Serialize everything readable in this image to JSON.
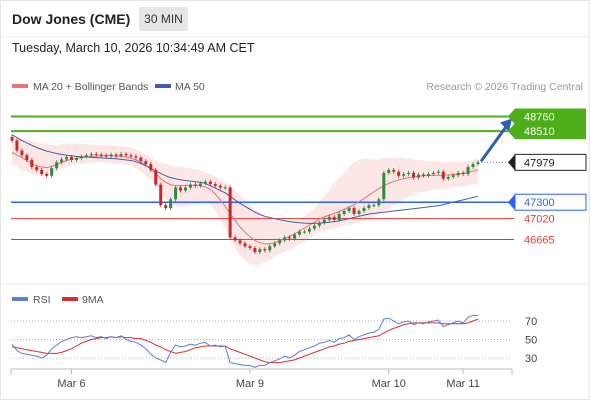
{
  "header": {
    "title": "Dow Jones (CME)",
    "interval": "30 MIN",
    "timestamp": "Tuesday, March 10, 2026 10:34:49 AM CET"
  },
  "legend": {
    "ma20": "MA 20 + Bollinger Bands",
    "ma50": "MA 50",
    "credit": "Research © 2026 Trading Central",
    "rsi": "RSI",
    "rsi_ma": "9MA"
  },
  "colors": {
    "up_candle": "#2f8a3f",
    "down_candle": "#c62828",
    "ma20": "#e57373",
    "ma50": "#3f5fa8",
    "bollinger_fill": "#fde2e2",
    "resistance": "#4caf1a",
    "pivot": "#2962ff",
    "support": "#e53935",
    "last_price": "#222222",
    "rsi_line": "#5b7fd6",
    "rsi_ma_line": "#d32f2f",
    "arrow": "#2f5fb0"
  },
  "chart_data": [
    {
      "type": "candlestick",
      "title": "Dow Jones (CME)",
      "ylim": [
        46350,
        48980
      ],
      "x_ticks": [
        "Mar 6",
        "Mar 9",
        "Mar 10",
        "Mar 11"
      ],
      "last_price": 47979,
      "levels": [
        {
          "value": 48760,
          "label": "48760",
          "kind": "resistance"
        },
        {
          "value": 48510,
          "label": "48510",
          "kind": "resistance"
        },
        {
          "value": 47979,
          "label": "47979",
          "kind": "last"
        },
        {
          "value": 47300,
          "label": "47300",
          "kind": "pivot"
        },
        {
          "value": 47020,
          "label": "47020",
          "kind": "support"
        },
        {
          "value": 46665,
          "label": "46665",
          "kind": "support"
        }
      ],
      "close": [
        48350,
        48180,
        48100,
        48020,
        47900,
        47850,
        47780,
        47750,
        47880,
        47980,
        48030,
        48070,
        48020,
        48050,
        48080,
        48100,
        48120,
        48110,
        48100,
        48080,
        48110,
        48090,
        48120,
        48100,
        48080,
        48060,
        48000,
        47950,
        47850,
        47600,
        47250,
        47200,
        47350,
        47550,
        47500,
        47550,
        47600,
        47580,
        47620,
        47650,
        47610,
        47580,
        47550,
        47550,
        46700,
        46650,
        46600,
        46550,
        46520,
        46450,
        46500,
        46480,
        46550,
        46600,
        46650,
        46700,
        46680,
        46750,
        46800,
        46800,
        46850,
        46900,
        46950,
        47000,
        47050,
        47000,
        47100,
        47150,
        47200,
        47100,
        47150,
        47200,
        47250,
        47250,
        47350,
        47800,
        47850,
        47820,
        47750,
        47780,
        47800,
        47720,
        47770,
        47750,
        47780,
        47800,
        47820,
        47700,
        47730,
        47760,
        47800,
        47780,
        47900,
        47950,
        47979
      ],
      "ma20": [
        48150,
        48100,
        48060,
        48010,
        47960,
        47920,
        47900,
        47890,
        47910,
        47940,
        47980,
        48010,
        48030,
        48050,
        48060,
        48070,
        48080,
        48085,
        48090,
        48090,
        48090,
        48085,
        48080,
        48070,
        48050,
        48020,
        47980,
        47930,
        47860,
        47780,
        47700,
        47640,
        47600,
        47580,
        47580,
        47590,
        47590,
        47590,
        47580,
        47560,
        47520,
        47440,
        47340,
        47230,
        47110,
        46990,
        46880,
        46790,
        46710,
        46650,
        46610,
        46590,
        46590,
        46610,
        46640,
        46680,
        46720,
        46760,
        46810,
        46860,
        46910,
        46960,
        47010,
        47050,
        47080,
        47110,
        47140,
        47180,
        47220,
        47260,
        47310,
        47360,
        47420,
        47480,
        47530,
        47580,
        47620,
        47650,
        47680,
        47700,
        47720,
        47730,
        47740,
        47750,
        47755,
        47760,
        47760,
        47760,
        47765,
        47770,
        47775,
        47790,
        47810,
        47830,
        47850
      ],
      "bb_upper": [
        48450,
        48400,
        48380,
        48360,
        48340,
        48320,
        48300,
        48290,
        48280,
        48280,
        48290,
        48300,
        48300,
        48300,
        48295,
        48290,
        48285,
        48280,
        48275,
        48270,
        48265,
        48260,
        48250,
        48240,
        48230,
        48200,
        48160,
        48110,
        48060,
        48010,
        47980,
        47950,
        47930,
        47910,
        47900,
        47890,
        47880,
        47860,
        47840,
        47810,
        47780,
        47740,
        47690,
        47630,
        47580,
        47500,
        47420,
        47340,
        47260,
        47180,
        47120,
        47060,
        47020,
        47000,
        46990,
        46980,
        46980,
        46990,
        47020,
        47060,
        47120,
        47200,
        47300,
        47400,
        47500,
        47620,
        47720,
        47800,
        47900,
        47980,
        48020,
        48040,
        48040,
        48030,
        48030,
        48050,
        48060,
        48060,
        48060,
        48050,
        48040,
        48030,
        48020,
        48010,
        48000,
        48000,
        47990,
        47980,
        47980,
        47980,
        47980,
        47990,
        48000,
        48020,
        48050
      ],
      "bb_lower": [
        47950,
        47900,
        47850,
        47820,
        47780,
        47760,
        47750,
        47760,
        47780,
        47820,
        47870,
        47900,
        47930,
        47950,
        47960,
        47970,
        47975,
        47980,
        47980,
        47975,
        47970,
        47960,
        47950,
        47940,
        47920,
        47880,
        47820,
        47750,
        47680,
        47600,
        47460,
        47350,
        47280,
        47240,
        47220,
        47230,
        47240,
        47260,
        47280,
        47290,
        47260,
        47150,
        47000,
        46850,
        46680,
        46520,
        46400,
        46300,
        46250,
        46230,
        46240,
        46280,
        46320,
        46380,
        46420,
        46460,
        46500,
        46540,
        46580,
        46630,
        46690,
        46750,
        46790,
        46820,
        46840,
        46860,
        46880,
        46900,
        46920,
        46940,
        46960,
        46990,
        47020,
        47060,
        47100,
        47150,
        47200,
        47250,
        47300,
        47350,
        47400,
        47430,
        47460,
        47480,
        47500,
        47510,
        47520,
        47530,
        47540,
        47550,
        47560,
        47570,
        47580,
        47600,
        47620
      ],
      "ma50": [
        48450,
        48400,
        48350,
        48310,
        48270,
        48230,
        48200,
        48170,
        48150,
        48130,
        48115,
        48100,
        48090,
        48080,
        48075,
        48070,
        48065,
        48060,
        48055,
        48050,
        48045,
        48040,
        48030,
        48020,
        48010,
        47990,
        47960,
        47920,
        47880,
        47830,
        47790,
        47750,
        47720,
        47700,
        47680,
        47670,
        47660,
        47650,
        47640,
        47620,
        47580,
        47540,
        47500,
        47460,
        47400,
        47340,
        47280,
        47230,
        47180,
        47130,
        47090,
        47060,
        47040,
        47020,
        47000,
        46985,
        46970,
        46960,
        46950,
        46945,
        46940,
        46940,
        46945,
        46950,
        46960,
        46970,
        46985,
        47000,
        47020,
        47040,
        47060,
        47080,
        47100,
        47110,
        47120,
        47130,
        47140,
        47150,
        47160,
        47170,
        47180,
        47190,
        47200,
        47210,
        47220,
        47230,
        47240,
        47260,
        47280,
        47300,
        47320,
        47340,
        47360,
        47380,
        47400
      ]
    },
    {
      "type": "line",
      "title": "RSI",
      "series_names": [
        "RSI",
        "9MA"
      ],
      "y_ticks": [
        30,
        50,
        70
      ],
      "ylim": [
        10,
        85
      ],
      "rsi": [
        45,
        38,
        35,
        34,
        33,
        32,
        30,
        33,
        40,
        44,
        48,
        50,
        52,
        53,
        52,
        53,
        54,
        52,
        53,
        51,
        53,
        52,
        54,
        50,
        48,
        47,
        44,
        40,
        34,
        30,
        28,
        25,
        36,
        44,
        42,
        43,
        45,
        44,
        46,
        47,
        43,
        44,
        42,
        43,
        25,
        24,
        23,
        22,
        22,
        20,
        22,
        22,
        25,
        27,
        29,
        32,
        30,
        33,
        37,
        39,
        41,
        43,
        46,
        47,
        49,
        47,
        51,
        52,
        55,
        50,
        53,
        55,
        57,
        58,
        61,
        72,
        73,
        70,
        67,
        69,
        70,
        66,
        68,
        67,
        69,
        70,
        71,
        64,
        66,
        68,
        70,
        68,
        74,
        76,
        76
      ],
      "rsi_ma": [
        42,
        41,
        40,
        39,
        38,
        37,
        36,
        35,
        35,
        35,
        36,
        38,
        40,
        43,
        46,
        48,
        50,
        51,
        52,
        52,
        53,
        52,
        53,
        52,
        52,
        51,
        51,
        49,
        47,
        44,
        42,
        39,
        37,
        35,
        36,
        37,
        39,
        41,
        42,
        43,
        43,
        43,
        43,
        43,
        40,
        38,
        36,
        34,
        32,
        30,
        28,
        26,
        25,
        25,
        25,
        26,
        27,
        28,
        30,
        32,
        34,
        36,
        38,
        40,
        42,
        43,
        45,
        46,
        48,
        49,
        50,
        51,
        52,
        53,
        54,
        57,
        60,
        62,
        64,
        66,
        67,
        68,
        68,
        68,
        68,
        68,
        68,
        67,
        67,
        67,
        67,
        67,
        68,
        70,
        72
      ]
    }
  ]
}
